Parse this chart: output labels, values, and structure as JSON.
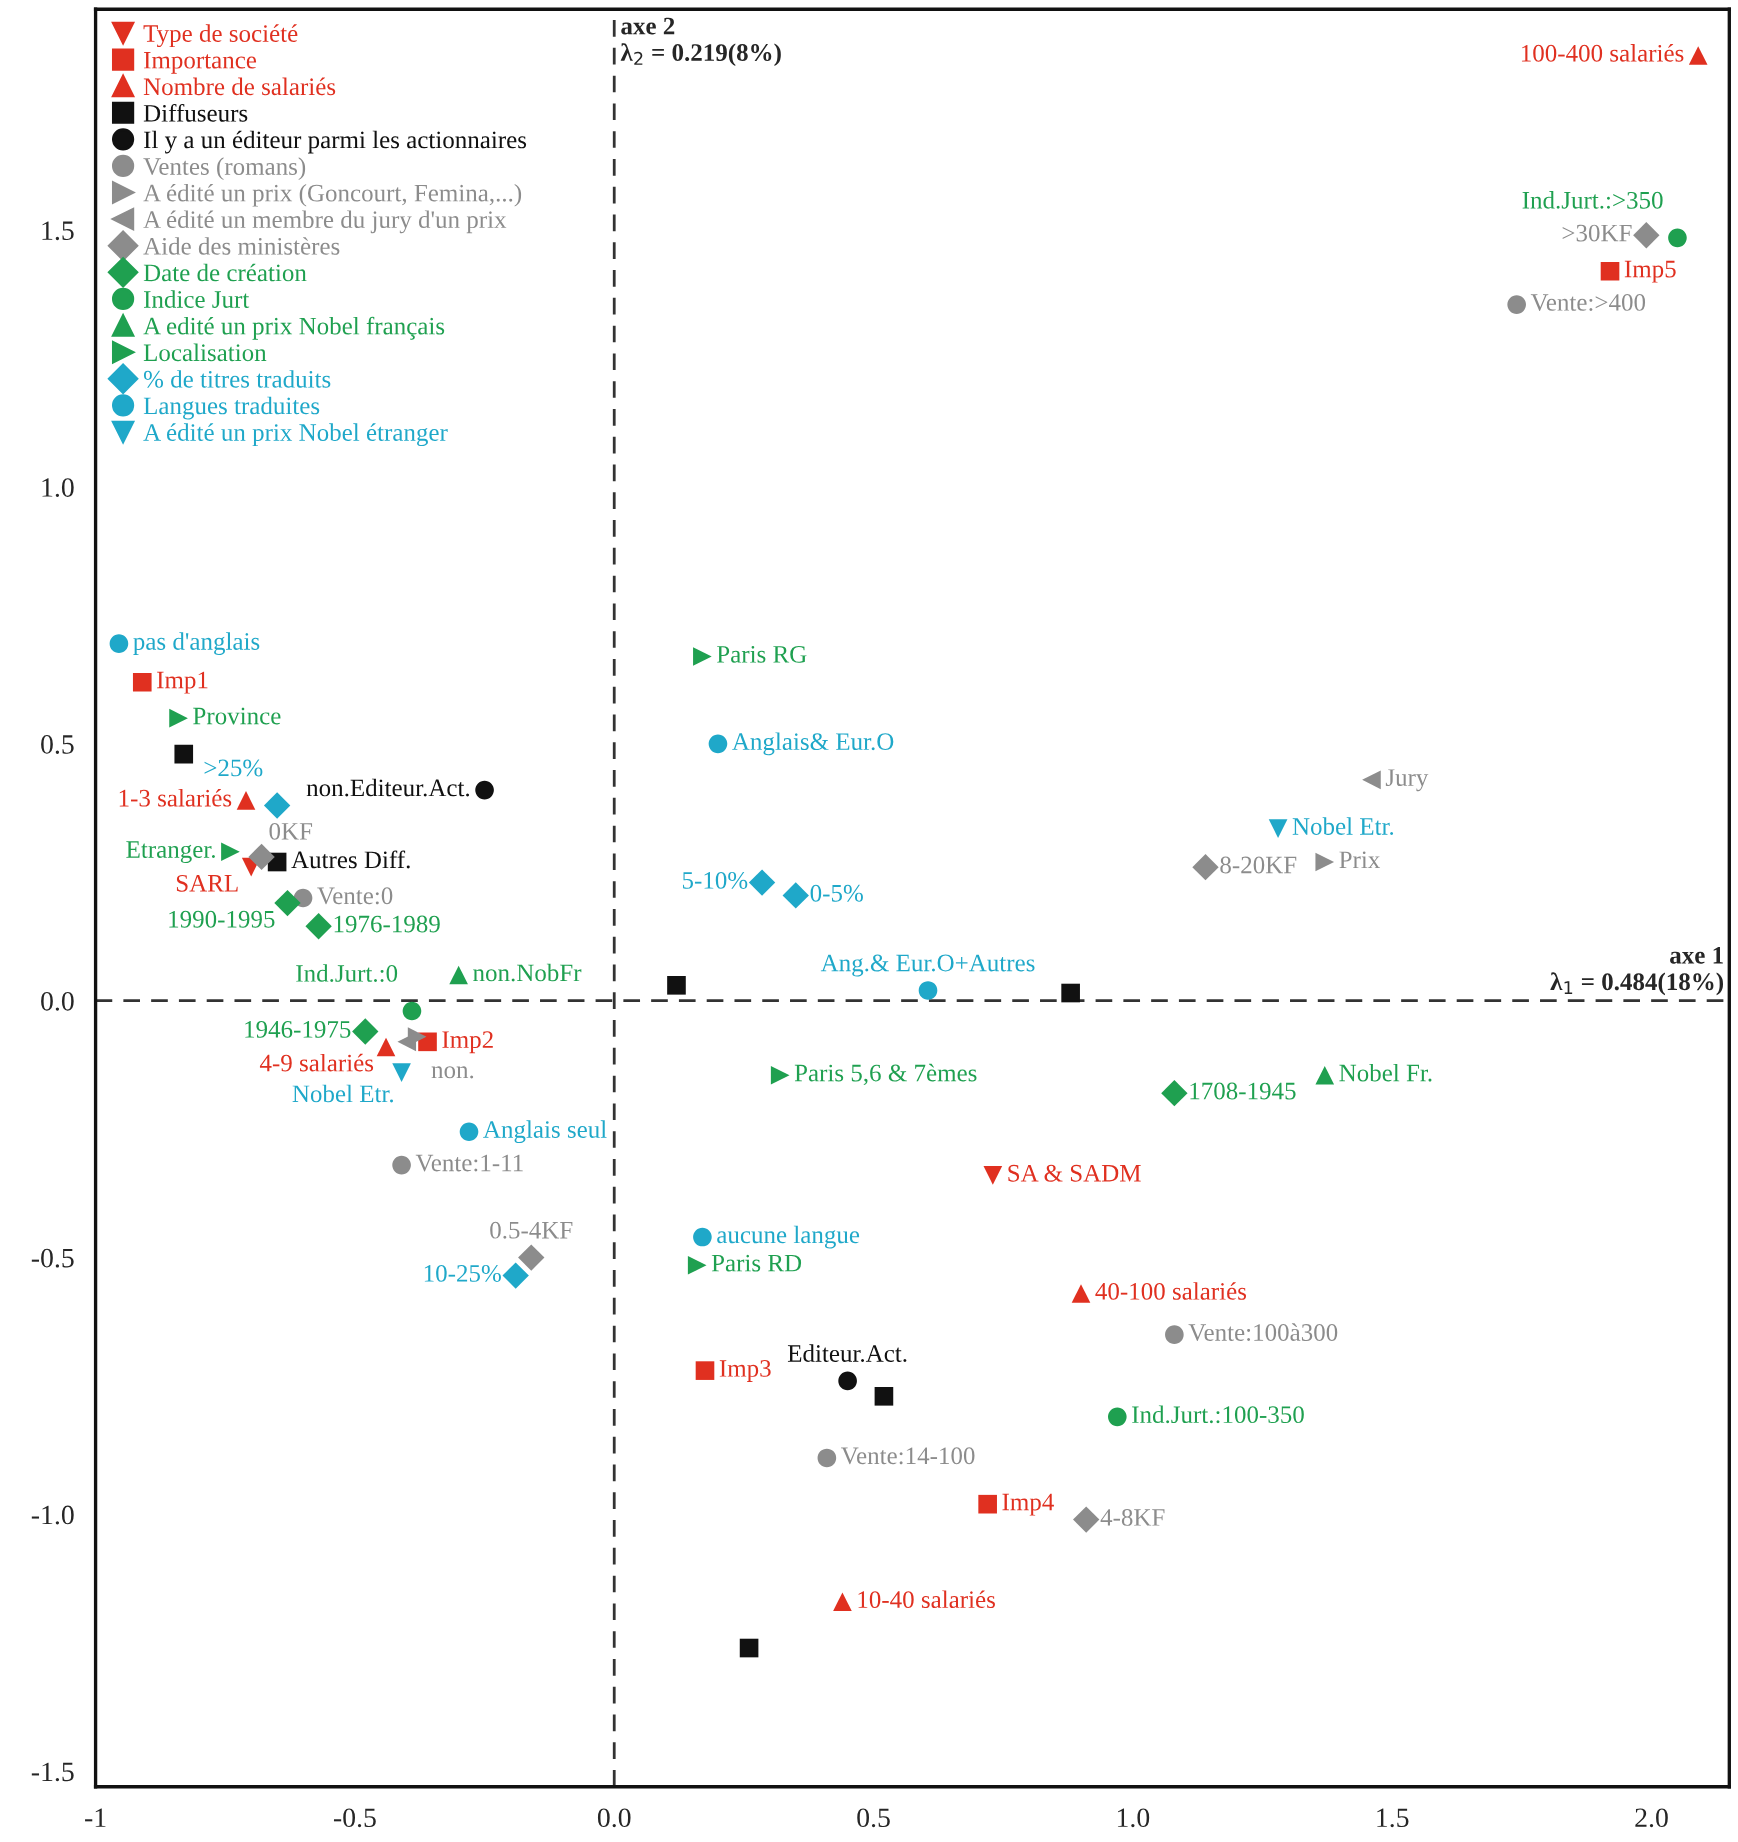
{
  "chart_data": {
    "type": "scatter",
    "xlim": [
      -1.0,
      2.15
    ],
    "ylim": [
      -1.53,
      1.93
    ],
    "xticks": [
      {
        "value": -1,
        "label": "-1"
      },
      -0.5,
      {
        "value": 0,
        "label": "0.0"
      },
      0.5,
      {
        "value": 1,
        "label": "1.0"
      },
      1.5,
      {
        "value": 2,
        "label": "2.0"
      }
    ],
    "yticks": [
      -1.5,
      {
        "value": -1,
        "label": "-1.0"
      },
      -0.5,
      {
        "value": 0,
        "label": "0.0"
      },
      0.5,
      {
        "value": 1,
        "label": "1.0"
      },
      1.5
    ],
    "annotations": [
      "axe 2\nλ$_{2}$ = 0.219(8%)",
      "axe 1\nλ$_{1}$ = 0.484(18%)"
    ],
    "grid": false,
    "legend": "top left",
    "ref_lines": [
      {
        "axis": "x",
        "value": 0,
        "color": "#333333",
        "line_style": "dashed"
      },
      {
        "axis": "y",
        "value": 0,
        "color": "#333333",
        "line_style": "dashed"
      }
    ],
    "series": [
      {
        "name": "Type de société",
        "color": "#e03020",
        "marker": "triangle_down",
        "x": [
          -0.7,
          0.73
        ],
        "values": [
          0.26,
          -0.34
        ],
        "value_labels": [
          "SARL",
          "SA & SADM"
        ]
      },
      {
        "name": "Importance",
        "color": "#e03020",
        "marker": "square",
        "x": [
          -0.91,
          -0.36,
          0.175,
          0.72,
          1.92
        ],
        "values": [
          0.62,
          -0.08,
          -0.72,
          -0.98,
          1.42
        ],
        "value_labels": [
          "Imp1",
          "Imp2",
          "Imp3",
          "Imp4",
          "Imp5"
        ]
      },
      {
        "name": "Nombre de salariés",
        "color": "#e03020",
        "marker": "triangle",
        "x": [
          -0.71,
          -0.44,
          0.44,
          0.9,
          2.09
        ],
        "values": [
          0.39,
          -0.09,
          -1.17,
          -0.57,
          1.84
        ],
        "value_labels": [
          "1-3 salariés",
          "4-9 salariés",
          "10-40 salariés",
          "40-100 salariés",
          "100-400 salariés"
        ]
      },
      {
        "name": "Diffuseurs",
        "color": "#111111",
        "marker": "square",
        "x": [
          -0.83,
          -0.65,
          0.12,
          0.88,
          0.52,
          0.26
        ],
        "values": [
          0.48,
          0.27,
          0.03,
          0.015,
          -0.77,
          -1.26
        ],
        "value_labels": [
          null,
          "Autres Diff.",
          null,
          null,
          null,
          null
        ]
      },
      {
        "name": "Il y a un éditeur parmi les actionnaires",
        "color": "#111111",
        "marker": "circle",
        "x": [
          -0.25,
          0.45
        ],
        "values": [
          0.41,
          -0.74
        ],
        "value_labels": [
          "non.Editeur.Act.",
          "Editeur.Act."
        ]
      },
      {
        "name": "Ventes (romans)",
        "color": "#8c8c8c",
        "marker": "circle",
        "x": [
          -0.6,
          -0.41,
          0.41,
          1.08,
          1.74
        ],
        "values": [
          0.2,
          -0.32,
          -0.89,
          -0.65,
          1.355
        ],
        "value_labels": [
          "Vente:0",
          "Vente:1-11",
          "Vente:14-100",
          "Vente:100à300",
          "Vente:>400"
        ]
      },
      {
        "name": "A édité un prix (Goncourt, Femina,...)",
        "color": "#8c8c8c",
        "marker": "triangle_right",
        "x": [
          1.37,
          -0.38
        ],
        "values": [
          0.27,
          -0.07
        ],
        "value_labels": [
          "Prix",
          "non."
        ]
      },
      {
        "name": "A édité un membre du jury d'un prix",
        "color": "#8c8c8c",
        "marker": "triangle_left",
        "x": [
          1.46,
          -0.4
        ],
        "values": [
          0.43,
          -0.08
        ],
        "value_labels": [
          "Jury",
          null
        ]
      },
      {
        "name": "Aide des ministères",
        "color": "#8c8c8c",
        "marker": "diamond",
        "x": [
          -0.68,
          -0.16,
          0.91,
          1.14,
          1.99
        ],
        "values": [
          0.28,
          -0.5,
          -1.01,
          0.26,
          1.49
        ],
        "value_labels": [
          "0KF",
          "0.5-4KF",
          "4-8KF",
          "8-20KF",
          ">30KF"
        ]
      },
      {
        "name": "Date de création",
        "color": "#1fa050",
        "marker": "diamond",
        "x": [
          -0.63,
          -0.57,
          -0.48,
          1.08
        ],
        "values": [
          0.19,
          0.145,
          -0.06,
          -0.18
        ],
        "value_labels": [
          "1990-1995",
          "1976-1989",
          "1946-1975",
          "1708-1945"
        ]
      },
      {
        "name": "Indice Jurt",
        "color": "#1fa050",
        "marker": "circle",
        "x": [
          -0.39,
          0.97,
          2.05
        ],
        "values": [
          -0.02,
          -0.81,
          1.485
        ],
        "value_labels": [
          "Ind.Jurt.:0",
          "Ind.Jurt.:100-350",
          "Ind.Jurt.:>350"
        ]
      },
      {
        "name": "A edité un prix Nobel français",
        "color": "#1fa050",
        "marker": "triangle",
        "x": [
          -0.3,
          1.37
        ],
        "values": [
          0.05,
          -0.145
        ],
        "value_labels": [
          "non.NobFr",
          "Nobel Fr."
        ]
      },
      {
        "name": "Localisation",
        "color": "#1fa050",
        "marker": "triangle_right",
        "x": [
          -0.84,
          0.17,
          0.32,
          0.16,
          -0.74
        ],
        "values": [
          0.55,
          0.67,
          -0.145,
          -0.515,
          0.29
        ],
        "value_labels": [
          "Province",
          "Paris RG",
          "Paris 5,6 & 7èmes",
          "Paris RD",
          "Etranger."
        ]
      },
      {
        "name": "% de titres traduits",
        "color": "#1fa8c9",
        "marker": "diamond",
        "x": [
          -0.65,
          0.285,
          0.35,
          -0.19
        ],
        "values": [
          0.38,
          0.23,
          0.205,
          -0.535
        ],
        "value_labels": [
          ">25%",
          "5-10%",
          "0-5%",
          "10-25%"
        ]
      },
      {
        "name": "Langues traduites",
        "color": "#1fa8c9",
        "marker": "circle",
        "x": [
          -0.955,
          0.2,
          0.605,
          -0.28,
          0.17
        ],
        "values": [
          0.695,
          0.5,
          0.02,
          -0.255,
          -0.46
        ],
        "value_labels": [
          "pas d'anglais",
          "Anglais& Eur.O",
          "Ang.& Eur.O+Autres",
          "Anglais seul",
          "aucune langue"
        ]
      },
      {
        "name": "A édité un prix Nobel étranger",
        "color": "#1fa8c9",
        "marker": "triangle_down",
        "x": [
          1.28,
          -0.41
        ],
        "values": [
          0.335,
          -0.14
        ],
        "value_labels": [
          "Nobel Etr.",
          "Nobel Etr."
        ]
      }
    ]
  }
}
